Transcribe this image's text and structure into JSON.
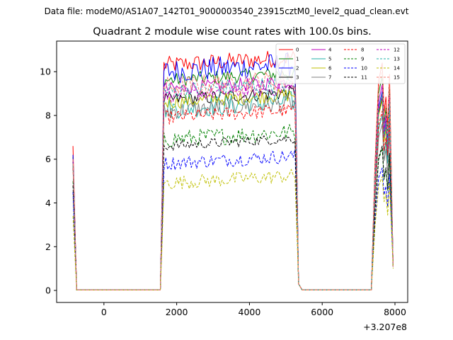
{
  "figure": {
    "suptitle": "Data file: modeM0/AS1A07_142T01_9000003540_23915cztM0_level2_quad_clean.evt"
  },
  "chart_data": {
    "type": "line",
    "title": "Quadrant 2 module wise count rates with 100.0s bins.",
    "xlabel": "",
    "ylabel": "",
    "x_offset_label": "+3.207e8",
    "xlim": [
      -1300,
      8350
    ],
    "ylim": [
      -0.55,
      11.4
    ],
    "x_ticks": [
      0,
      2000,
      4000,
      6000,
      8000
    ],
    "x_tick_labels": [
      "0",
      "2000",
      "4000",
      "6000",
      "8000"
    ],
    "y_ticks": [
      0,
      2,
      4,
      6,
      8,
      10
    ],
    "y_tick_labels": [
      "0",
      "2",
      "4",
      "6",
      "8",
      "10"
    ],
    "grid": false,
    "legend_position": "top-right",
    "legend_columns": 4,
    "segments": [
      {
        "x_start": -850,
        "x_end": 1550,
        "spike_x": -850,
        "zero_from": -750
      },
      {
        "x_start": 1550,
        "x_end": 5350,
        "ramp_x": 1650
      },
      {
        "x_start": 5350,
        "x_end": 7350,
        "drop_x": 5350,
        "zero_from": 5450
      },
      {
        "x_start": 7350,
        "x_end": 7950
      }
    ],
    "series": [
      {
        "name": "0",
        "color": "#ff0000",
        "dash": "solid",
        "spike": 6.6,
        "plateau": 10.3,
        "spread": 0.25,
        "peak": 10.4,
        "end": 1.1
      },
      {
        "name": "1",
        "color": "#008000",
        "dash": "solid",
        "spike": 6.1,
        "plateau": 9.6,
        "spread": 0.2,
        "peak": 9.8,
        "end": 1.1
      },
      {
        "name": "2",
        "color": "#0000ff",
        "dash": "solid",
        "spike": 6.2,
        "plateau": 10.0,
        "spread": 0.35,
        "peak": 9.1,
        "end": 1.1
      },
      {
        "name": "3",
        "color": "#000000",
        "dash": "solid",
        "spike": 5.9,
        "plateau": 8.7,
        "spread": 0.2,
        "peak": 8.8,
        "end": 1.1
      },
      {
        "name": "4",
        "color": "#bf00bf",
        "dash": "solid",
        "spike": 6.0,
        "plateau": 9.2,
        "spread": 0.2,
        "peak": 9.4,
        "end": 1.1
      },
      {
        "name": "5",
        "color": "#20b2aa",
        "dash": "solid",
        "spike": 5.8,
        "plateau": 8.3,
        "spread": 0.3,
        "peak": 8.0,
        "end": 1.1
      },
      {
        "name": "6",
        "color": "#bfbf00",
        "dash": "solid",
        "spike": 5.8,
        "plateau": 8.6,
        "spread": 0.2,
        "peak": 8.7,
        "end": 1.1
      },
      {
        "name": "7",
        "color": "#808080",
        "dash": "solid",
        "spike": 5.7,
        "plateau": 8.2,
        "spread": 0.25,
        "peak": 7.6,
        "end": 1.1
      },
      {
        "name": "8",
        "color": "#ff0000",
        "dash": "dashed",
        "spike": 5.6,
        "plateau": 7.9,
        "spread": 0.2,
        "peak": 8.2,
        "end": 1.1
      },
      {
        "name": "9",
        "color": "#008000",
        "dash": "dashed",
        "spike": 5.0,
        "plateau": 6.9,
        "spread": 0.25,
        "peak": 6.5,
        "end": 1.1
      },
      {
        "name": "10",
        "color": "#0000ff",
        "dash": "dashed",
        "spike": 4.5,
        "plateau": 5.8,
        "spread": 0.2,
        "peak": 5.6,
        "end": 1.1
      },
      {
        "name": "11",
        "color": "#000000",
        "dash": "dashed",
        "spike": 4.8,
        "plateau": 6.6,
        "spread": 0.15,
        "peak": 6.6,
        "end": 1.1
      },
      {
        "name": "12",
        "color": "#bf00bf",
        "dash": "dashed",
        "spike": 5.8,
        "plateau": 8.9,
        "spread": 0.2,
        "peak": 9.0,
        "end": 1.1
      },
      {
        "name": "13",
        "color": "#20b2aa",
        "dash": "dashed",
        "spike": 5.8,
        "plateau": 9.1,
        "spread": 0.25,
        "peak": 9.0,
        "end": 1.1
      },
      {
        "name": "14",
        "color": "#bfbf00",
        "dash": "dashed",
        "spike": 3.4,
        "plateau": 4.9,
        "spread": 0.2,
        "peak": 5.2,
        "end": 1.0
      },
      {
        "name": "15",
        "color": "#fa8072",
        "dash": "dashed",
        "spike": 6.0,
        "plateau": 9.3,
        "spread": 0.3,
        "peak": 10.1,
        "end": 1.1
      }
    ]
  }
}
